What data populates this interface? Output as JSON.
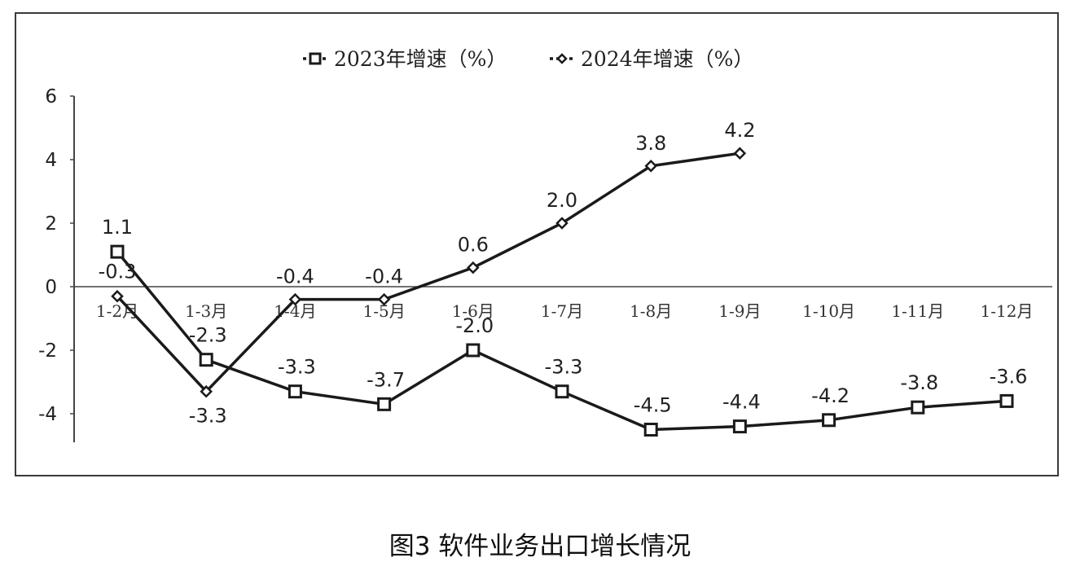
{
  "caption": "图3 软件业务出口增长情况",
  "chart_data": {
    "type": "line",
    "categories": [
      "1-2月",
      "1-3月",
      "1-4月",
      "1-5月",
      "1-6月",
      "1-7月",
      "1-8月",
      "1-9月",
      "1-10月",
      "1-11月",
      "1-12月"
    ],
    "series": [
      {
        "name": "2023年增速（%）",
        "marker": "square",
        "values": [
          1.1,
          -2.3,
          -3.3,
          -3.7,
          -2.0,
          -3.3,
          -4.5,
          -4.4,
          -4.2,
          -3.8,
          -3.6
        ]
      },
      {
        "name": "2024年增速（%）",
        "marker": "diamond",
        "values": [
          -0.3,
          -3.3,
          -0.4,
          -0.4,
          0.6,
          2.0,
          3.8,
          4.2,
          null,
          null,
          null
        ]
      }
    ],
    "y_ticks": [
      6,
      4,
      2,
      0,
      -2,
      -4
    ],
    "ylim": [
      -5,
      6
    ],
    "legend_position": "top-center",
    "grid": false,
    "line_color": "#1a1a1a"
  }
}
